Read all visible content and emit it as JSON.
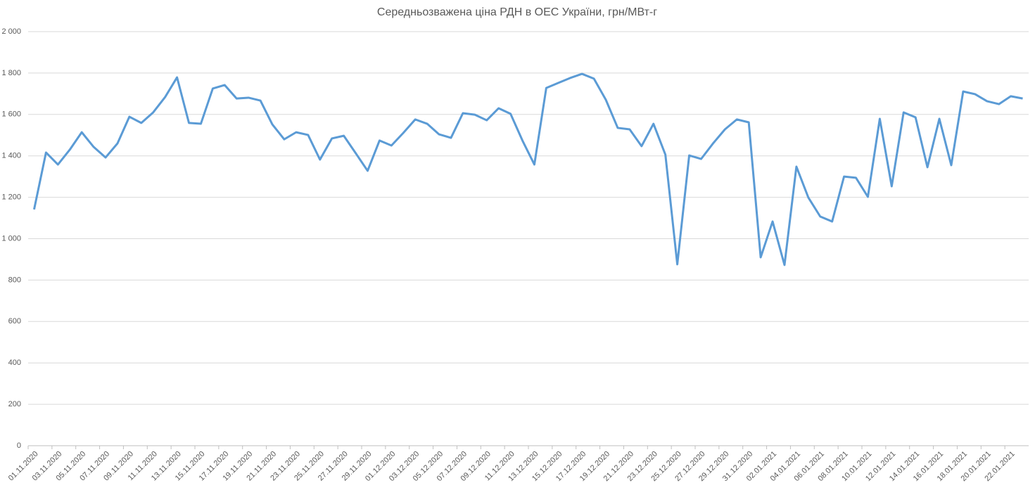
{
  "chart_data": {
    "type": "line",
    "title": "Середньозважена ціна РДН в ОЕС України, грн/МВт-г",
    "categories": [
      "01.11.2020",
      null,
      "03.11.2020",
      null,
      "05.11.2020",
      null,
      "07.11.2020",
      null,
      "09.11.2020",
      null,
      "11.11.2020",
      null,
      "13.11.2020",
      null,
      "15.11.2020",
      null,
      "17.11.2020",
      null,
      "19.11.2020",
      null,
      "21.11.2020",
      null,
      "23.11.2020",
      null,
      "25.11.2020",
      null,
      "27.11.2020",
      null,
      "29.11.2020",
      null,
      "01.12.2020",
      null,
      "03.12.2020",
      null,
      "05.12.2020",
      null,
      "07.12.2020",
      null,
      "09.12.2020",
      null,
      "11.12.2020",
      null,
      "13.12.2020",
      null,
      "15.12.2020",
      null,
      "17.12.2020",
      null,
      "19.12.2020",
      null,
      "21.12.2020",
      null,
      "23.12.2020",
      null,
      "25.12.2020",
      null,
      "27.12.2020",
      null,
      "29.12.2020",
      null,
      "31.12.2020",
      null,
      "02.01.2021",
      null,
      "04.01.2021",
      null,
      "06.01.2021",
      null,
      "08.01.2021",
      null,
      "10.01.2021",
      null,
      "12.01.2021",
      null,
      "14.01.2021",
      null,
      "16.01.2021",
      null,
      "18.01.2021",
      null,
      "20.01.2021",
      null,
      "22.01.2021",
      null
    ],
    "series": [
      {
        "color": "#5b9bd5",
        "values": [
          1141,
          1416,
          1358,
          1430,
          1514,
          1443,
          1392,
          1460,
          1589,
          1559,
          1610,
          1684,
          1779,
          1559,
          1555,
          1725,
          1742,
          1677,
          1681,
          1667,
          1552,
          1480,
          1514,
          1501,
          1382,
          1484,
          1497,
          1413,
          1328,
          1474,
          1450,
          1511,
          1576,
          1555,
          1504,
          1487,
          1606,
          1599,
          1572,
          1630,
          1603,
          1474,
          1358,
          1728,
          1752,
          1776,
          1796,
          1773,
          1671,
          1535,
          1528,
          1447,
          1555,
          1406,
          876,
          1402,
          1385,
          1460,
          1528,
          1576,
          1562,
          910,
          1083,
          873,
          1348,
          1199,
          1107,
          1083,
          1300,
          1294,
          1202,
          1579,
          1253,
          1610,
          1586,
          1345,
          1579,
          1355,
          1711,
          1698,
          1664,
          1650,
          1688,
          1677
        ]
      }
    ],
    "ylim": [
      0,
      2000
    ],
    "yticks": [
      0,
      200,
      400,
      600,
      800,
      {
        "value": 1000,
        "label": "1 000"
      },
      {
        "value": 1200,
        "label": "1 200"
      },
      {
        "value": 1400,
        "label": "1 400"
      },
      {
        "value": 1600,
        "label": "1 600"
      },
      {
        "value": 1800,
        "label": "1 800"
      },
      {
        "value": 2000,
        "label": "2 000"
      }
    ],
    "grid": true
  }
}
